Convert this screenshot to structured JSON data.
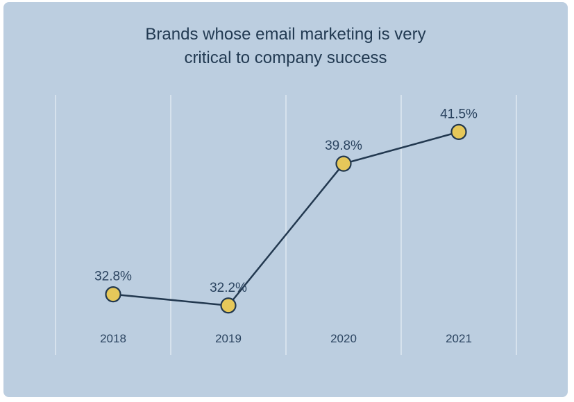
{
  "chart_data": {
    "type": "line",
    "title_lines": [
      "Brands whose email marketing is very",
      "critical to company success"
    ],
    "categories": [
      "2018",
      "2019",
      "2020",
      "2021"
    ],
    "values": [
      32.8,
      32.2,
      39.8,
      41.5
    ],
    "value_labels": [
      "32.8%",
      "32.2%",
      "39.8%",
      "41.5%"
    ],
    "ylim": [
      30,
      43
    ],
    "grid": true,
    "colors": {
      "background": "#bccee0",
      "line": "#22384f",
      "marker_fill": "#e6c85a",
      "grid": "#e8eff6",
      "text": "#2b4460"
    }
  }
}
